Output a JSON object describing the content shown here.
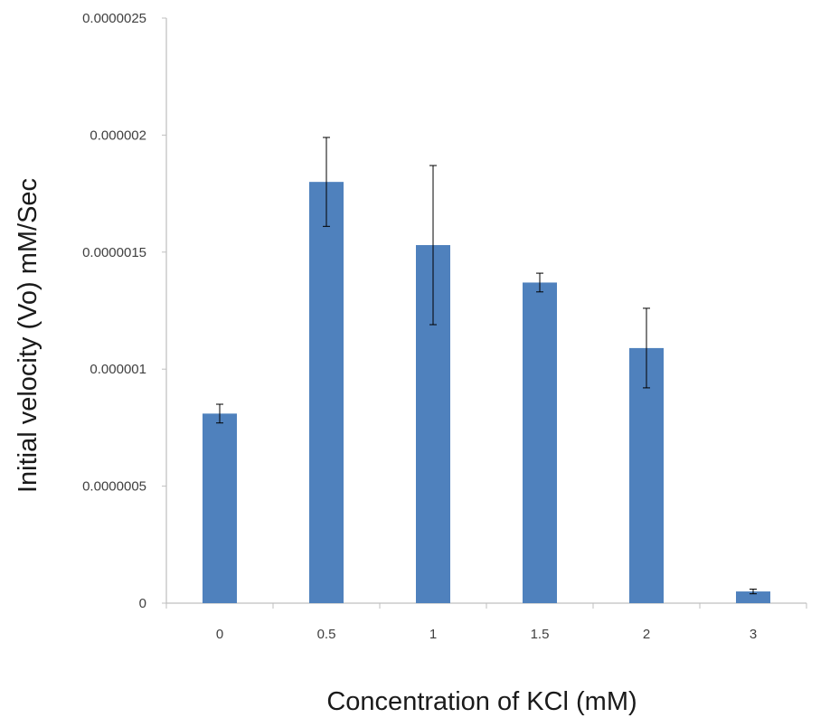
{
  "chart_data": {
    "type": "bar",
    "title": "",
    "xlabel": "Concentration of KCl (mM)",
    "ylabel": "Initial velocity (Vo) mM/Sec",
    "categories": [
      "0",
      "0.5",
      "1",
      "1.5",
      "2",
      "3"
    ],
    "series": [
      {
        "values": [
          8.1e-07,
          1.8e-06,
          1.53e-06,
          1.37e-06,
          1.09e-06,
          5e-08
        ],
        "error": [
          4e-08,
          1.9e-07,
          3.4e-07,
          4e-08,
          1.7e-07,
          1e-08
        ]
      }
    ],
    "ylim": [
      0,
      2.5e-06
    ],
    "yticks": [
      "0",
      "0.0000005",
      "0.000001",
      "0.0000015",
      "0.000002",
      "0.0000025"
    ],
    "grid": false,
    "legend": "none",
    "colors": {
      "bar": "#4f81bd",
      "axis": "#bfbfbf",
      "error_bar": "#000000"
    }
  }
}
